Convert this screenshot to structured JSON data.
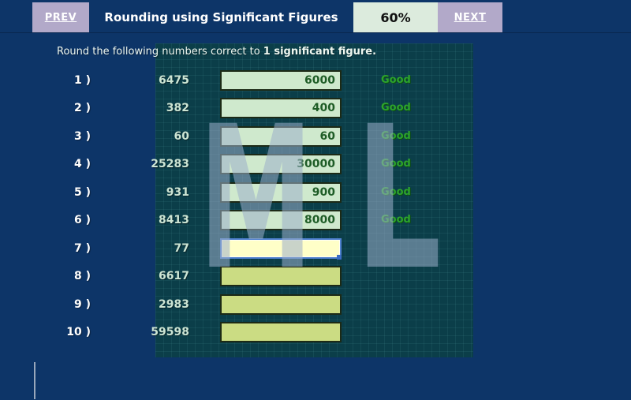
{
  "topbar": {
    "prev_label": "PREV",
    "title": "Rounding using Significant Figures",
    "progress": "60%",
    "next_label": "NEXT"
  },
  "instruction": {
    "prefix": "Round the following numbers correct to ",
    "emphasis": "1 significant figure."
  },
  "rows": [
    {
      "label": "1 )",
      "source": "6475",
      "answer": "6000",
      "feedback": "Good",
      "state": "answered"
    },
    {
      "label": "2 )",
      "source": "382",
      "answer": "400",
      "feedback": "Good",
      "state": "answered"
    },
    {
      "label": "3 )",
      "source": "60",
      "answer": "60",
      "feedback": "Good",
      "state": "answered"
    },
    {
      "label": "4 )",
      "source": "25283",
      "answer": "30000",
      "feedback": "Good",
      "state": "answered"
    },
    {
      "label": "5 )",
      "source": "931",
      "answer": "900",
      "feedback": "Good",
      "state": "answered"
    },
    {
      "label": "6 )",
      "source": "8413",
      "answer": "8000",
      "feedback": "Good",
      "state": "answered"
    },
    {
      "label": "7 )",
      "source": "77",
      "answer": "",
      "feedback": "",
      "state": "active"
    },
    {
      "label": "8 )",
      "source": "6617",
      "answer": "",
      "feedback": "",
      "state": "empty"
    },
    {
      "label": "9 )",
      "source": "2983",
      "answer": "",
      "feedback": "",
      "state": "empty"
    },
    {
      "label": "10 )",
      "source": "59598",
      "answer": "",
      "feedback": "",
      "state": "empty"
    }
  ],
  "watermark": {
    "letter_m": "M",
    "letter_l": "L"
  },
  "colors": {
    "background_navy": "#0d3568",
    "panel_teal": "#0b3e49",
    "button_lavender": "#b2a9c9",
    "progress_mint": "#dcebdd",
    "input_green": "#cfe9cd",
    "input_olive": "#cbdc83",
    "input_active_yellow": "#ffffc8",
    "focus_blue": "#4e80cf",
    "good_green": "#2ca32c",
    "answer_green": "#1e5c26",
    "watermark_bluegray": "#9dafcb"
  }
}
